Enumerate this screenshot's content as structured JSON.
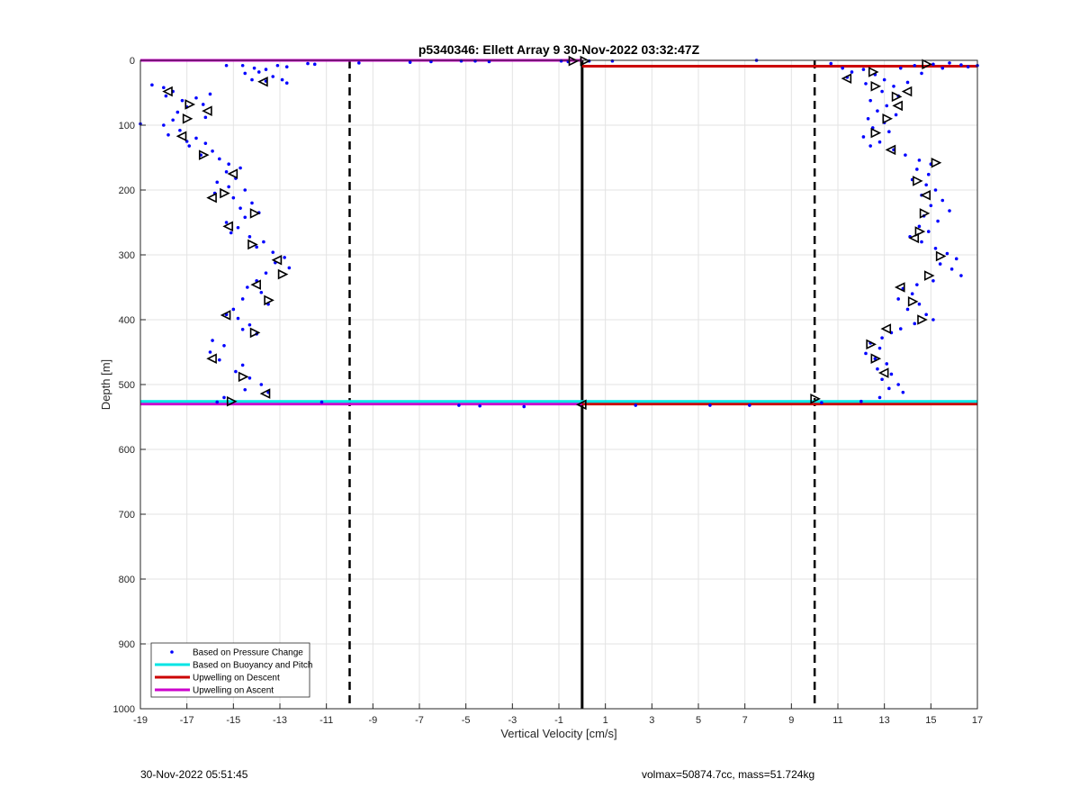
{
  "footer": {
    "timestamp": "30-Nov-2022 05:51:45",
    "summary": "volmax=50874.7cc, mass=51.724kg"
  },
  "chart_data": {
    "type": "scatter",
    "title": "p5340346: Ellett Array 9 30-Nov-2022 03:32:47Z",
    "xlabel": "Vertical Velocity [cm/s]",
    "ylabel": "Depth [m]",
    "xlim": [
      -19,
      17
    ],
    "ylim": [
      0,
      1000
    ],
    "y_reversed": true,
    "grid": true,
    "x_ticks": [
      -19,
      -17,
      -15,
      -13,
      -11,
      -9,
      -7,
      -5,
      -3,
      -1,
      1,
      3,
      5,
      7,
      9,
      11,
      13,
      15,
      17
    ],
    "y_ticks": [
      0,
      100,
      200,
      300,
      400,
      500,
      600,
      700,
      800,
      900,
      1000
    ],
    "legend": {
      "location": "bottom-left",
      "entries": [
        {
          "label": "Based on Pressure Change",
          "color": "#0000ff",
          "marker": "dot"
        },
        {
          "label": "Based on Buoyancy and Pitch",
          "color": "#00e5e5",
          "marker": "line"
        },
        {
          "label": "Upwelling on Descent",
          "color": "#cc0000",
          "marker": "line"
        },
        {
          "label": "Upwelling on Ascent",
          "color": "#cc00cc",
          "marker": "line"
        }
      ]
    },
    "reference_lines": [
      {
        "orientation": "vertical",
        "x": -10,
        "style": "dashed",
        "color": "#000000"
      },
      {
        "orientation": "vertical",
        "x": 10,
        "style": "dashed",
        "color": "#000000"
      },
      {
        "orientation": "vertical",
        "x": 0,
        "style": "solid",
        "color": "#000000"
      }
    ],
    "lines": [
      {
        "series": "Upwelling on Ascent",
        "color": "#cc00cc",
        "points": [
          [
            -19,
            0
          ],
          [
            0,
            0
          ]
        ]
      },
      {
        "series": "Upwelling on Ascent",
        "color": "#cc00cc",
        "points": [
          [
            -19,
            530
          ],
          [
            0,
            530
          ]
        ]
      },
      {
        "series": "Upwelling on Descent",
        "color": "#cc0000",
        "points": [
          [
            0,
            9
          ],
          [
            17,
            9
          ]
        ]
      },
      {
        "series": "Upwelling on Descent",
        "color": "#cc0000",
        "points": [
          [
            0,
            530
          ],
          [
            17,
            530
          ]
        ]
      },
      {
        "series": "Based on Buoyancy and Pitch",
        "color": "#00e5e5",
        "points": [
          [
            -19,
            526
          ],
          [
            17,
            526
          ]
        ]
      }
    ],
    "series": [
      {
        "name": "Based on Pressure Change",
        "color": "#0000ff",
        "points": [
          [
            -15.3,
            8
          ],
          [
            -14.6,
            8
          ],
          [
            -14.1,
            12
          ],
          [
            -13.6,
            14
          ],
          [
            -13.1,
            8
          ],
          [
            -12.7,
            10
          ],
          [
            -13.9,
            18
          ],
          [
            -14.5,
            20
          ],
          [
            -13.3,
            25
          ],
          [
            -12.9,
            30
          ],
          [
            -13.6,
            32
          ],
          [
            -14.2,
            30
          ],
          [
            -12.7,
            35
          ],
          [
            -11.5,
            6
          ],
          [
            -11.8,
            5
          ],
          [
            -9.6,
            4
          ],
          [
            -7.4,
            3
          ],
          [
            -6.5,
            2
          ],
          [
            -5.2,
            1
          ],
          [
            -4.6,
            1
          ],
          [
            -4.0,
            2
          ],
          [
            -0.9,
            1
          ],
          [
            -0.6,
            2
          ],
          [
            0.3,
            1
          ],
          [
            1.3,
            1
          ],
          [
            7.5,
            0
          ],
          [
            -18.5,
            38
          ],
          [
            -18.0,
            42
          ],
          [
            -17.6,
            48
          ],
          [
            -17.9,
            55
          ],
          [
            -17.2,
            62
          ],
          [
            -16.6,
            58
          ],
          [
            -16.0,
            52
          ],
          [
            -16.3,
            68
          ],
          [
            -17.0,
            72
          ],
          [
            -17.4,
            80
          ],
          [
            -16.2,
            88
          ],
          [
            -17.6,
            92
          ],
          [
            -18.0,
            100
          ],
          [
            -17.3,
            108
          ],
          [
            -17.8,
            115
          ],
          [
            -17.0,
            125
          ],
          [
            -16.6,
            120
          ],
          [
            -16.9,
            132
          ],
          [
            -16.2,
            128
          ],
          [
            -15.9,
            140
          ],
          [
            -16.4,
            146
          ],
          [
            -15.6,
            152
          ],
          [
            -15.2,
            160
          ],
          [
            -14.7,
            166
          ],
          [
            -15.3,
            172
          ],
          [
            -14.9,
            182
          ],
          [
            -15.7,
            188
          ],
          [
            -15.2,
            195
          ],
          [
            -14.5,
            200
          ],
          [
            -15.8,
            205
          ],
          [
            -15.0,
            212
          ],
          [
            -14.2,
            220
          ],
          [
            -14.7,
            228
          ],
          [
            -13.9,
            235
          ],
          [
            -14.5,
            242
          ],
          [
            -15.3,
            250
          ],
          [
            -14.8,
            258
          ],
          [
            -15.1,
            266
          ],
          [
            -14.3,
            272
          ],
          [
            -13.7,
            280
          ],
          [
            -14.0,
            288
          ],
          [
            -13.3,
            296
          ],
          [
            -12.8,
            304
          ],
          [
            -13.2,
            312
          ],
          [
            -12.6,
            320
          ],
          [
            -13.6,
            328
          ],
          [
            -14.0,
            340
          ],
          [
            -14.4,
            350
          ],
          [
            -13.8,
            358
          ],
          [
            -14.6,
            368
          ],
          [
            -13.5,
            376
          ],
          [
            -15.0,
            384
          ],
          [
            -15.3,
            392
          ],
          [
            -14.8,
            398
          ],
          [
            -14.3,
            408
          ],
          [
            -14.6,
            415
          ],
          [
            -14.0,
            422
          ],
          [
            -15.9,
            432
          ],
          [
            -15.4,
            440
          ],
          [
            -16.0,
            450
          ],
          [
            -15.6,
            462
          ],
          [
            -14.6,
            470
          ],
          [
            -14.9,
            480
          ],
          [
            -14.3,
            490
          ],
          [
            -13.8,
            500
          ],
          [
            -14.5,
            508
          ],
          [
            -13.5,
            512
          ],
          [
            -15.4,
            520
          ],
          [
            -15.7,
            527
          ],
          [
            -11.2,
            527
          ],
          [
            -5.3,
            532
          ],
          [
            -4.4,
            533
          ],
          [
            -2.5,
            534
          ],
          [
            2.3,
            532
          ],
          [
            5.5,
            532
          ],
          [
            7.2,
            532
          ],
          [
            -19.0,
            98
          ],
          [
            10.7,
            5
          ],
          [
            11.2,
            12
          ],
          [
            11.6,
            18
          ],
          [
            12.1,
            14
          ],
          [
            11.4,
            26
          ],
          [
            12.6,
            22
          ],
          [
            13.0,
            30
          ],
          [
            12.2,
            36
          ],
          [
            13.4,
            40
          ],
          [
            14.0,
            34
          ],
          [
            13.7,
            12
          ],
          [
            14.3,
            8
          ],
          [
            15.1,
            6
          ],
          [
            15.8,
            4
          ],
          [
            16.3,
            7
          ],
          [
            17.0,
            8
          ],
          [
            16.6,
            10
          ],
          [
            15.5,
            12
          ],
          [
            14.6,
            20
          ],
          [
            12.9,
            48
          ],
          [
            13.6,
            55
          ],
          [
            12.4,
            62
          ],
          [
            13.1,
            70
          ],
          [
            12.7,
            78
          ],
          [
            13.5,
            84
          ],
          [
            12.3,
            90
          ],
          [
            13.0,
            96
          ],
          [
            12.5,
            104
          ],
          [
            13.2,
            110
          ],
          [
            12.1,
            118
          ],
          [
            12.8,
            126
          ],
          [
            12.4,
            132
          ],
          [
            13.4,
            138
          ],
          [
            13.9,
            146
          ],
          [
            14.5,
            154
          ],
          [
            15.0,
            160
          ],
          [
            14.4,
            168
          ],
          [
            14.9,
            176
          ],
          [
            14.2,
            184
          ],
          [
            14.8,
            192
          ],
          [
            15.2,
            200
          ],
          [
            14.6,
            208
          ],
          [
            15.5,
            216
          ],
          [
            15.0,
            224
          ],
          [
            15.8,
            232
          ],
          [
            14.7,
            240
          ],
          [
            15.3,
            248
          ],
          [
            14.5,
            256
          ],
          [
            14.9,
            264
          ],
          [
            14.1,
            272
          ],
          [
            14.6,
            280
          ],
          [
            15.2,
            290
          ],
          [
            15.7,
            298
          ],
          [
            16.1,
            306
          ],
          [
            15.4,
            314
          ],
          [
            15.9,
            322
          ],
          [
            16.3,
            332
          ],
          [
            15.1,
            340
          ],
          [
            14.4,
            346
          ],
          [
            13.8,
            352
          ],
          [
            14.2,
            360
          ],
          [
            13.6,
            368
          ],
          [
            14.5,
            376
          ],
          [
            14.0,
            384
          ],
          [
            14.8,
            392
          ],
          [
            15.1,
            400
          ],
          [
            14.3,
            406
          ],
          [
            13.7,
            414
          ],
          [
            13.3,
            420
          ],
          [
            12.9,
            428
          ],
          [
            12.4,
            436
          ],
          [
            12.8,
            444
          ],
          [
            12.2,
            452
          ],
          [
            12.6,
            460
          ],
          [
            13.1,
            468
          ],
          [
            12.7,
            476
          ],
          [
            13.3,
            484
          ],
          [
            12.9,
            492
          ],
          [
            13.6,
            500
          ],
          [
            13.2,
            506
          ],
          [
            13.8,
            512
          ],
          [
            12.8,
            520
          ],
          [
            12.0,
            526
          ],
          [
            10.3,
            528
          ]
        ]
      }
    ],
    "markers": {
      "shape": "triangle",
      "color": "#000000",
      "points": [
        [
          -17.8,
          48
        ],
        [
          -16.9,
          68
        ],
        [
          -16.1,
          78
        ],
        [
          -17.0,
          90
        ],
        [
          -17.2,
          117
        ],
        [
          -16.3,
          146
        ],
        [
          -15.0,
          175
        ],
        [
          -15.4,
          205
        ],
        [
          -15.9,
          212
        ],
        [
          -14.1,
          236
        ],
        [
          -15.2,
          256
        ],
        [
          -14.2,
          284
        ],
        [
          -13.1,
          308
        ],
        [
          -12.9,
          330
        ],
        [
          -14.0,
          346
        ],
        [
          -13.5,
          370
        ],
        [
          -15.3,
          393
        ],
        [
          -14.1,
          420
        ],
        [
          -15.9,
          460
        ],
        [
          -14.6,
          488
        ],
        [
          -13.6,
          514
        ],
        [
          -15.1,
          526
        ],
        [
          -13.7,
          33
        ],
        [
          -0.4,
          1
        ],
        [
          0.0,
          531
        ],
        [
          0.1,
          1
        ],
        [
          10.0,
          522
        ],
        [
          11.4,
          28
        ],
        [
          12.5,
          18
        ],
        [
          13.5,
          56
        ],
        [
          14.0,
          48
        ],
        [
          13.1,
          90
        ],
        [
          12.6,
          112
        ],
        [
          13.3,
          138
        ],
        [
          15.2,
          158
        ],
        [
          14.4,
          186
        ],
        [
          14.8,
          208
        ],
        [
          14.7,
          236
        ],
        [
          14.5,
          264
        ],
        [
          14.3,
          274
        ],
        [
          15.4,
          302
        ],
        [
          14.9,
          332
        ],
        [
          13.7,
          350
        ],
        [
          14.2,
          372
        ],
        [
          14.6,
          400
        ],
        [
          13.1,
          414
        ],
        [
          12.4,
          438
        ],
        [
          12.6,
          460
        ],
        [
          13.0,
          482
        ],
        [
          14.8,
          6
        ],
        [
          12.6,
          40
        ],
        [
          13.6,
          70
        ]
      ]
    }
  }
}
